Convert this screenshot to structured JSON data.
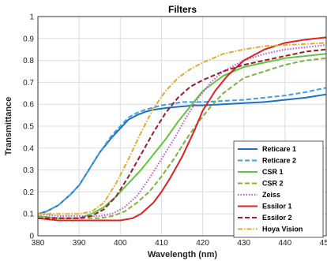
{
  "chart_data": {
    "type": "line",
    "title": "Filters",
    "xlabel": "Wavelength (nm)",
    "ylabel": "Transmittance",
    "xlim": [
      380,
      450
    ],
    "ylim": [
      0,
      1
    ],
    "x_ticks": [
      380,
      390,
      400,
      410,
      420,
      430,
      440,
      450
    ],
    "y_ticks": [
      0,
      0.1,
      0.2,
      0.3,
      0.4,
      0.5,
      0.6,
      0.7,
      0.8,
      0.9,
      1
    ],
    "grid": true,
    "legend_position": "bottom-right",
    "series": [
      {
        "name": "Reticare 1",
        "color": "#1f6fbf",
        "style": "solid",
        "x": [
          380,
          382,
          385,
          388,
          390,
          392,
          395,
          398,
          400,
          402,
          404,
          406,
          408,
          410,
          412,
          415,
          418,
          420,
          425,
          430,
          435,
          440,
          445,
          450
        ],
        "y": [
          0.1,
          0.11,
          0.14,
          0.19,
          0.23,
          0.29,
          0.38,
          0.45,
          0.49,
          0.53,
          0.55,
          0.565,
          0.575,
          0.58,
          0.585,
          0.59,
          0.595,
          0.595,
          0.6,
          0.605,
          0.61,
          0.62,
          0.63,
          0.645
        ]
      },
      {
        "name": "Reticare 2",
        "color": "#3ca0e6",
        "style": "dashed",
        "x": [
          380,
          382,
          385,
          388,
          390,
          392,
          395,
          398,
          400,
          402,
          404,
          406,
          408,
          410,
          412,
          415,
          418,
          420,
          425,
          430,
          435,
          440,
          445,
          450
        ],
        "y": [
          0.1,
          0.11,
          0.14,
          0.19,
          0.23,
          0.29,
          0.38,
          0.46,
          0.5,
          0.54,
          0.56,
          0.575,
          0.585,
          0.595,
          0.6,
          0.61,
          0.61,
          0.61,
          0.615,
          0.62,
          0.63,
          0.64,
          0.655,
          0.675
        ]
      },
      {
        "name": "CSR 1",
        "color": "#5cc83a",
        "style": "solid",
        "x": [
          380,
          385,
          390,
          393,
          396,
          399,
          402,
          405,
          408,
          411,
          414,
          417,
          420,
          425,
          430,
          435,
          440,
          445,
          450
        ],
        "y": [
          0.09,
          0.08,
          0.08,
          0.1,
          0.13,
          0.18,
          0.24,
          0.3,
          0.37,
          0.44,
          0.52,
          0.59,
          0.66,
          0.73,
          0.77,
          0.79,
          0.81,
          0.82,
          0.83
        ]
      },
      {
        "name": "CSR 2",
        "color": "#7fb040",
        "style": "dashed",
        "x": [
          380,
          385,
          390,
          395,
          398,
          401,
          404,
          407,
          410,
          413,
          416,
          419,
          422,
          425,
          430,
          435,
          440,
          445,
          450
        ],
        "y": [
          0.09,
          0.08,
          0.08,
          0.08,
          0.09,
          0.11,
          0.15,
          0.2,
          0.27,
          0.35,
          0.44,
          0.52,
          0.59,
          0.65,
          0.72,
          0.75,
          0.78,
          0.8,
          0.81
        ]
      },
      {
        "name": "Zeiss",
        "color": "#c050d8",
        "style": "dotted",
        "x": [
          380,
          385,
          390,
          395,
          398,
          401,
          404,
          407,
          410,
          413,
          416,
          419,
          422,
          425,
          430,
          435,
          440,
          445,
          450
        ],
        "y": [
          0.1,
          0.09,
          0.09,
          0.09,
          0.1,
          0.13,
          0.18,
          0.26,
          0.35,
          0.44,
          0.54,
          0.63,
          0.7,
          0.75,
          0.8,
          0.83,
          0.85,
          0.86,
          0.87
        ]
      },
      {
        "name": "Essilor 1",
        "color": "#e02020",
        "style": "solid",
        "x": [
          380,
          385,
          390,
          395,
          400,
          403,
          405,
          408,
          410,
          412,
          415,
          418,
          420,
          423,
          426,
          430,
          435,
          440,
          445,
          450
        ],
        "y": [
          0.08,
          0.07,
          0.07,
          0.07,
          0.07,
          0.08,
          0.1,
          0.15,
          0.2,
          0.26,
          0.36,
          0.48,
          0.57,
          0.66,
          0.73,
          0.8,
          0.85,
          0.88,
          0.895,
          0.905
        ]
      },
      {
        "name": "Essilor 2",
        "color": "#a01830",
        "style": "dashed",
        "x": [
          380,
          385,
          390,
          393,
          396,
          399,
          402,
          405,
          408,
          411,
          414,
          417,
          420,
          425,
          430,
          435,
          440,
          445,
          450
        ],
        "y": [
          0.08,
          0.08,
          0.08,
          0.09,
          0.12,
          0.18,
          0.27,
          0.37,
          0.47,
          0.56,
          0.63,
          0.68,
          0.71,
          0.75,
          0.78,
          0.8,
          0.82,
          0.84,
          0.85
        ]
      },
      {
        "name": "Hoya Vision",
        "color": "#e8a82a",
        "style": "dashdot",
        "x": [
          380,
          385,
          390,
          393,
          396,
          399,
          402,
          405,
          408,
          411,
          414,
          417,
          420,
          425,
          430,
          435,
          440,
          445,
          450
        ],
        "y": [
          0.1,
          0.1,
          0.1,
          0.11,
          0.15,
          0.24,
          0.35,
          0.47,
          0.58,
          0.66,
          0.72,
          0.76,
          0.79,
          0.83,
          0.85,
          0.865,
          0.87,
          0.875,
          0.88
        ]
      }
    ]
  }
}
